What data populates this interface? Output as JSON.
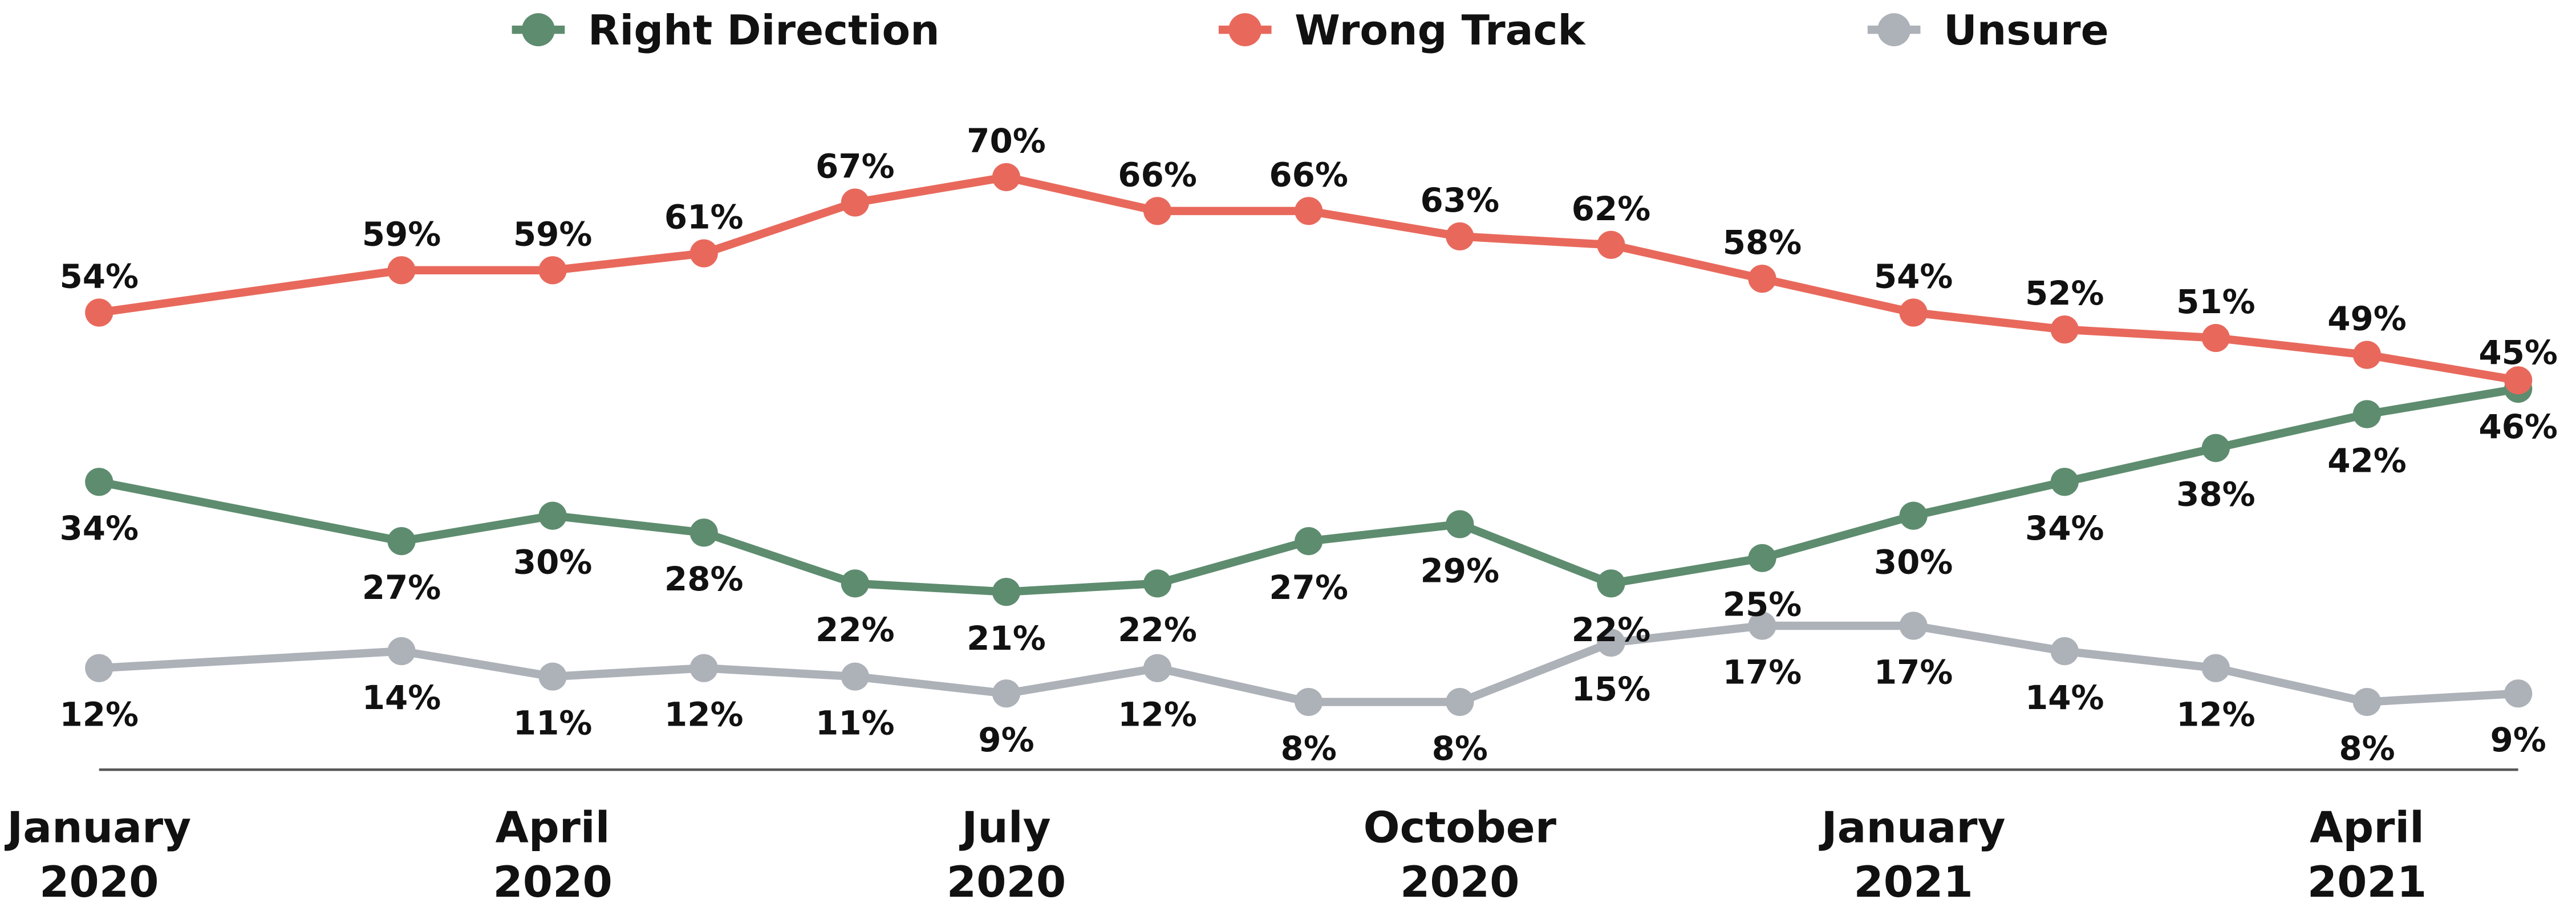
{
  "chart_data": {
    "type": "line",
    "x": [
      "2020-01",
      "2020-03",
      "2020-04",
      "2020-05",
      "2020-06",
      "2020-07",
      "2020-08",
      "2020-09",
      "2020-10",
      "2020-11",
      "2020-12",
      "2021-01",
      "2021-02",
      "2021-03",
      "2021-04",
      "2021-05"
    ],
    "xticks": [
      {
        "value": "2020-01",
        "label": "January 2020"
      },
      {
        "value": "2020-04",
        "label": "April 2020"
      },
      {
        "value": "2020-07",
        "label": "July 2020"
      },
      {
        "value": "2020-10",
        "label": "October 2020"
      },
      {
        "value": "2021-01",
        "label": "January 2021"
      },
      {
        "value": "2021-04",
        "label": "April 2021"
      }
    ],
    "xlim": [
      "2020-01",
      "2021-05"
    ],
    "ylim": [
      0,
      80
    ],
    "legend": "top",
    "series": [
      {
        "name": "Right Direction",
        "color": "#5e8c6f",
        "values": [
          34,
          27,
          30,
          28,
          22,
          21,
          22,
          27,
          29,
          22,
          25,
          30,
          34,
          38,
          42,
          45
        ],
        "value_labels": [
          "34%",
          "27%",
          "30%",
          "28%",
          "22%",
          "21%",
          "22%",
          "27%",
          "29%",
          "22%",
          "25%",
          "30%",
          "34%",
          "38%",
          "42%",
          "45%"
        ]
      },
      {
        "name": "Wrong Track",
        "color": "#e8695c",
        "values": [
          54,
          59,
          59,
          61,
          67,
          70,
          66,
          66,
          63,
          62,
          58,
          54,
          52,
          51,
          49,
          46
        ],
        "value_labels": [
          "54%",
          "59%",
          "59%",
          "61%",
          "67%",
          "70%",
          "66%",
          "66%",
          "63%",
          "62%",
          "58%",
          "54%",
          "52%",
          "51%",
          "49%",
          "46%"
        ]
      },
      {
        "name": "Unsure",
        "color": "#adb1b8",
        "values": [
          12,
          14,
          11,
          12,
          11,
          9,
          12,
          8,
          8,
          15,
          17,
          17,
          14,
          12,
          8,
          9
        ],
        "value_labels": [
          "12%",
          "14%",
          "11%",
          "12%",
          "11%",
          "9%",
          "12%",
          "8%",
          "8%",
          "15%",
          "17%",
          "17%",
          "14%",
          "12%",
          "8%",
          "9%"
        ]
      }
    ]
  }
}
